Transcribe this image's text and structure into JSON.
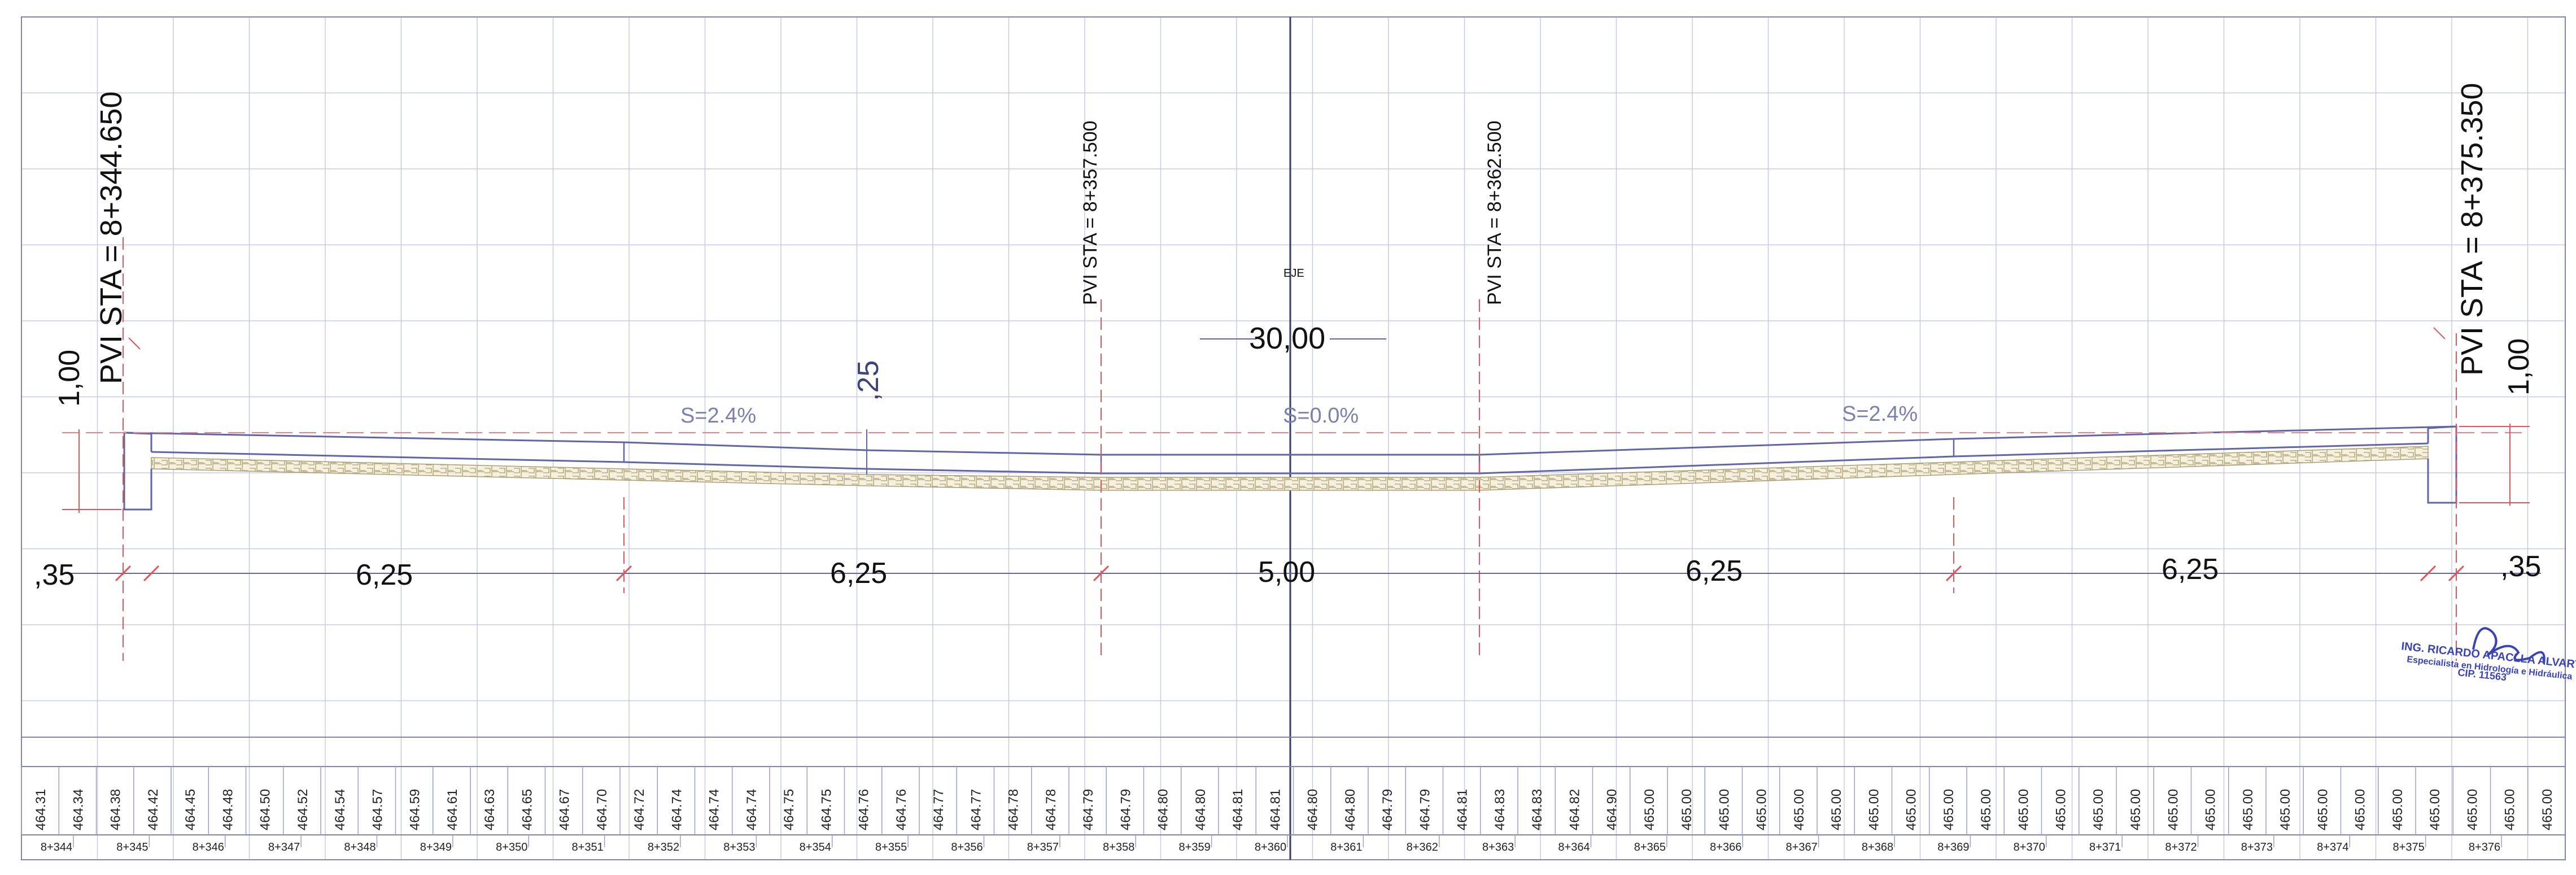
{
  "labels": {
    "pvi_start": "PVI STA = 8+344.650",
    "pvi_1": "PVI STA = 8+357.500",
    "pvi_2": "PVI STA = 8+362.500",
    "pvi_end": "PVI STA = 8+375.350",
    "eje": "EJE",
    "total_width": "30,00",
    "slope_left": "S=2.4%",
    "slope_center": "S=0.0%",
    "slope_right": "S=2.4%",
    "curb_height_left": "1,00",
    "curb_height_right": "1,00",
    "thickness": ",25",
    "dim_curb_left": ",35",
    "dim_curb_right": ",35",
    "dim_segments": [
      "6,25",
      "6,25",
      "5,00",
      "6,25",
      "6,25"
    ]
  },
  "stamp": {
    "name": "ING. RICARDO APACLLA ALVARTE",
    "title": "Especialista en Hidrología e Hidráulica",
    "cip": "CIP. 11563"
  },
  "elevation_row": [
    "464.31",
    "464.34",
    "464.38",
    "464.42",
    "464.45",
    "464.48",
    "464.50",
    "464.52",
    "464.54",
    "464.57",
    "464.59",
    "464.61",
    "464.63",
    "464.65",
    "464.67",
    "464.70",
    "464.72",
    "464.74",
    "464.74",
    "464.74",
    "464.75",
    "464.75",
    "464.76",
    "464.76",
    "464.77",
    "464.77",
    "464.78",
    "464.78",
    "464.79",
    "464.79",
    "464.80",
    "464.80",
    "464.81",
    "464.81",
    "464.80",
    "464.80",
    "464.79",
    "464.79",
    "464.81",
    "464.83",
    "464.83",
    "464.82",
    "464.90",
    "465.00",
    "465.00",
    "465.00",
    "465.00",
    "465.00",
    "465.00",
    "465.00",
    "465.00",
    "465.00",
    "465.00",
    "465.00",
    "465.00",
    "465.00",
    "465.00",
    "465.00",
    "465.00",
    "465.00",
    "465.00",
    "465.00",
    "465.00",
    "465.00",
    "465.00",
    "465.00",
    "465.00",
    "465.00"
  ],
  "station_row": [
    "8+344",
    "8+345",
    "8+346",
    "8+347",
    "8+348",
    "8+349",
    "8+350",
    "8+351",
    "8+352",
    "8+353",
    "8+354",
    "8+355",
    "8+356",
    "8+357",
    "8+358",
    "8+359",
    "8+360",
    "8+361",
    "8+362",
    "8+363",
    "8+364",
    "8+365",
    "8+366",
    "8+367",
    "8+368",
    "8+369",
    "8+370",
    "8+371",
    "8+372",
    "8+373",
    "8+374",
    "8+375",
    "8+376"
  ]
}
